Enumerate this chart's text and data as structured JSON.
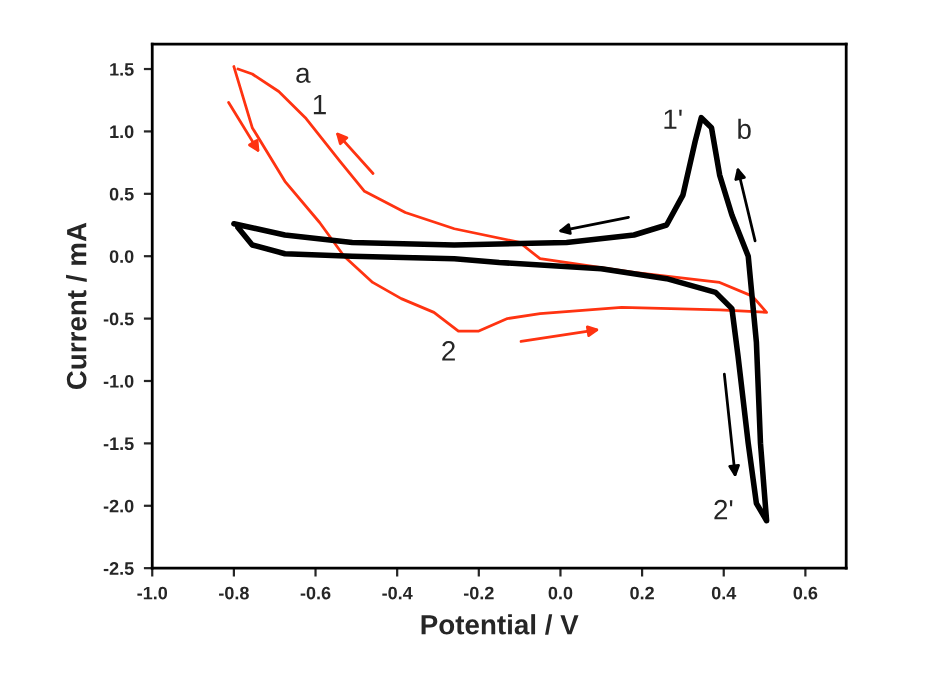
{
  "chart_data": {
    "type": "line",
    "xlabel": "Potential / V",
    "ylabel": "Current / mA",
    "xlim": [
      -1.0,
      0.7
    ],
    "ylim": [
      -2.5,
      1.7
    ],
    "xticks": [
      {
        "value": -1,
        "label": "-1.0"
      },
      -0.8,
      -0.6,
      -0.4,
      -0.2,
      {
        "value": 0,
        "label": "0.0"
      },
      0.2,
      0.4,
      0.6
    ],
    "yticks": [
      -2.5,
      {
        "value": -2,
        "label": "-2.0"
      },
      -1.5,
      {
        "value": -1,
        "label": "-1.0"
      },
      -0.5,
      {
        "value": 0,
        "label": "0.0"
      },
      0.5,
      {
        "value": 1,
        "label": "1.0"
      },
      1.5
    ],
    "grid": false,
    "legend": false,
    "marker": "none",
    "line_style": "solid",
    "series": [
      {
        "color": "#ff3311",
        "x": [
          -0.8,
          -0.755,
          -0.675,
          -0.59,
          -0.53,
          -0.46,
          -0.39,
          -0.31,
          -0.25,
          -0.2,
          -0.13,
          -0.05,
          0.15,
          0.39,
          0.505,
          0.47,
          0.39,
          0.18,
          -0.05,
          -0.1,
          -0.26,
          -0.38,
          -0.48,
          -0.54,
          -0.625,
          -0.69,
          -0.755,
          -0.79
        ],
        "values": [
          1.52,
          1.03,
          0.6,
          0.27,
          0.0,
          -0.21,
          -0.34,
          -0.45,
          -0.6,
          -0.6,
          -0.5,
          -0.46,
          -0.41,
          -0.43,
          -0.45,
          -0.32,
          -0.21,
          -0.13,
          -0.02,
          0.11,
          0.22,
          0.35,
          0.52,
          0.76,
          1.11,
          1.32,
          1.46,
          1.5
        ]
      },
      {
        "color": "#000000",
        "x": [
          -0.8,
          -0.675,
          -0.51,
          -0.26,
          0.015,
          0.18,
          0.26,
          0.3,
          0.33,
          0.345,
          0.37,
          0.39,
          0.42,
          0.46,
          0.48,
          0.49,
          0.505,
          0.48,
          0.46,
          0.435,
          0.42,
          0.38,
          0.26,
          0.1,
          -0.15,
          -0.26,
          -0.51,
          -0.675,
          -0.755,
          -0.79
        ],
        "values": [
          0.26,
          0.17,
          0.11,
          0.09,
          0.11,
          0.17,
          0.25,
          0.49,
          0.92,
          1.11,
          1.03,
          0.65,
          0.33,
          0.0,
          -0.69,
          -1.5,
          -2.12,
          -1.98,
          -1.5,
          -0.8,
          -0.42,
          -0.29,
          -0.18,
          -0.1,
          -0.05,
          -0.02,
          0.0,
          0.02,
          0.09,
          0.23
        ]
      }
    ],
    "annotations": [
      "a",
      "1",
      "2",
      "1'",
      "b",
      "2'"
    ]
  }
}
